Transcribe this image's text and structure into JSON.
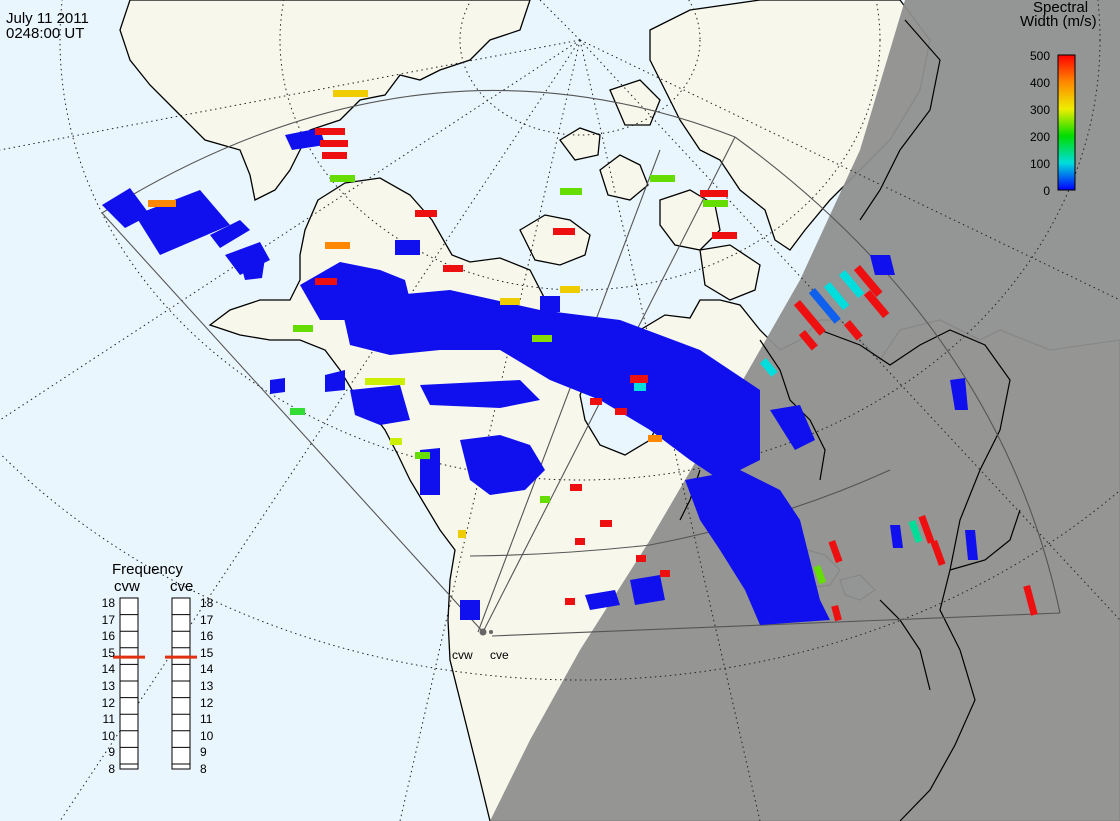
{
  "header": {
    "date": "July 11 2011",
    "time": "0248:00 UT"
  },
  "colorbar": {
    "title_line1": "Spectral",
    "title_line2": "Width (m/s)",
    "ticks": [
      "500",
      "400",
      "300",
      "200",
      "100",
      "0"
    ]
  },
  "frequency": {
    "title": "Frequency",
    "radar_a": "cvw",
    "radar_b": "cve",
    "ticks": [
      "18",
      "17",
      "16",
      "15",
      "14",
      "13",
      "12",
      "11",
      "10",
      "9",
      "8"
    ],
    "selected_a": 15,
    "selected_b": 15
  },
  "sites": {
    "west": "cvw",
    "east": "cve"
  },
  "colors": {
    "ocean": "#eaf6fd",
    "land": "#f7f7ec",
    "night": "#8f8f8f",
    "coast": "#000000",
    "low_width": "#1010ee",
    "high_width": "#ee1010",
    "freq_marker": "#e03010"
  }
}
